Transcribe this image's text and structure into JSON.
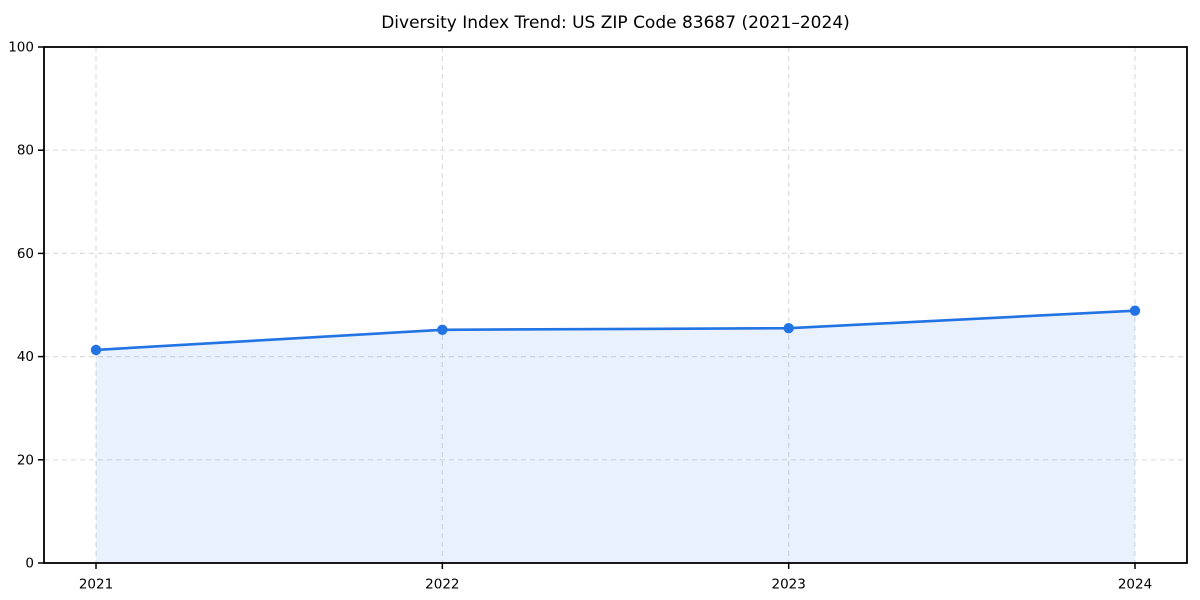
{
  "chart_data": {
    "type": "area",
    "title": "Diversity Index Trend: US ZIP Code 83687 (2021–2024)",
    "categories": [
      "2021",
      "2022",
      "2023",
      "2024"
    ],
    "series": [
      {
        "name": "Diversity Index",
        "values": [
          41.3,
          45.2,
          45.5,
          48.9
        ]
      }
    ],
    "xlabel": "",
    "ylabel": "",
    "ylim": [
      0,
      100
    ],
    "yticks": [
      0,
      20,
      40,
      60,
      80,
      100
    ],
    "grid": "dashed-both-axes",
    "legend": "none",
    "marker": "circle",
    "colors": {
      "line": "#2273e3",
      "marker": "#2273e3",
      "fill": "rgba(34,115,227,0.10)",
      "grid": "#dddddd",
      "axis": "#000000",
      "tick_label": "#000000",
      "title": "#000000",
      "background": "#ffffff"
    }
  }
}
